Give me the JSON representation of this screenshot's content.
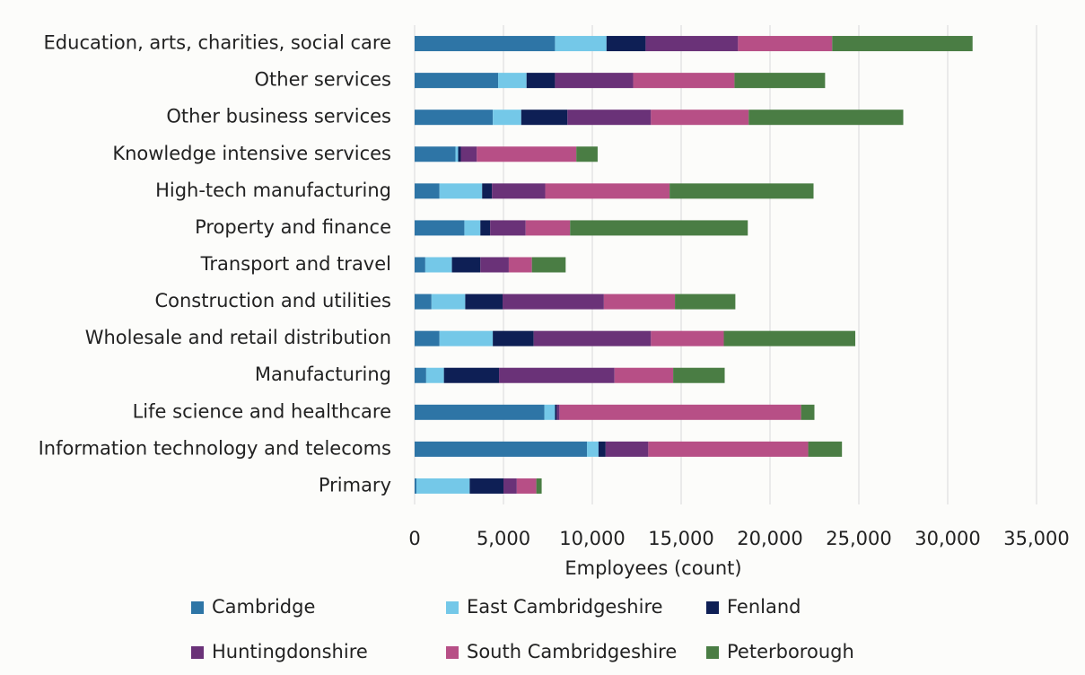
{
  "chart_data": {
    "type": "stacked_barh",
    "categories": [
      "Education, arts, charities, social care",
      "Other services",
      "Other business services",
      "Knowledge intensive services",
      "High-tech manufacturing",
      "Property and finance",
      "Transport and travel",
      "Construction and utilities",
      "Wholesale and retail distribution",
      "Manufacturing",
      "Life science and healthcare",
      "Information technology and telecoms",
      "Primary"
    ],
    "series": [
      {
        "name": "Cambridge",
        "color": "#2e75a6",
        "values": [
          7900,
          4700,
          4400,
          2300,
          1400,
          2800,
          600,
          950,
          1400,
          650,
          7300,
          9700,
          100
        ]
      },
      {
        "name": "East Cambridgeshire",
        "color": "#74c8e8",
        "values": [
          2900,
          1600,
          1600,
          150,
          2400,
          900,
          1500,
          1900,
          3000,
          1000,
          600,
          650,
          3000
        ]
      },
      {
        "name": "Fenland",
        "color": "#0e1f55",
        "values": [
          2200,
          1600,
          2600,
          150,
          550,
          550,
          1600,
          2100,
          2300,
          3100,
          100,
          400,
          1900
        ]
      },
      {
        "name": "Huntingdonshire",
        "color": "#6a3278",
        "values": [
          5200,
          4400,
          4700,
          900,
          3000,
          2000,
          1600,
          5700,
          6600,
          6500,
          150,
          2400,
          750
        ]
      },
      {
        "name": "South Cambridgeshire",
        "color": "#b74f86",
        "values": [
          5300,
          5700,
          5500,
          5600,
          7000,
          2500,
          1300,
          4000,
          4100,
          3300,
          13600,
          9000,
          1100
        ]
      },
      {
        "name": "Peterborough",
        "color": "#4a7d44",
        "values": [
          7900,
          5100,
          8700,
          1200,
          8100,
          10000,
          1900,
          3400,
          7400,
          2900,
          750,
          1900,
          300
        ]
      }
    ],
    "xlabel": "Employees (count)",
    "xlim": [
      0,
      35000
    ],
    "xticks": [
      0,
      {
        "value": 5000,
        "label": "5,000"
      },
      {
        "value": 10000,
        "label": "10,000"
      },
      {
        "value": 15000,
        "label": "15,000"
      },
      {
        "value": 20000,
        "label": "20,000"
      },
      {
        "value": 25000,
        "label": "25,000"
      },
      {
        "value": 30000,
        "label": "30,000"
      },
      {
        "value": 35000,
        "label": "35,000"
      }
    ],
    "grid": true,
    "legend": "bottom"
  }
}
